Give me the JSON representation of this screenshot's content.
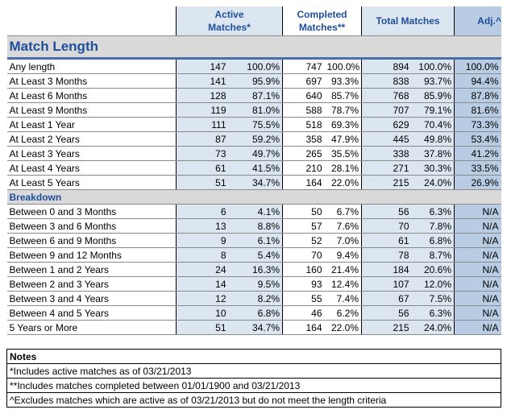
{
  "header": {
    "columns": [
      "Active Matches*",
      "Completed Matches**",
      "Total Matches",
      "Adj.^"
    ]
  },
  "sections": [
    {
      "title": "Match Length",
      "rows": [
        [
          "Any length",
          "147",
          "100.0%",
          "747",
          "100.0%",
          "894",
          "100.0%",
          "100.0%"
        ],
        [
          "At Least 3 Months",
          "141",
          "95.9%",
          "697",
          "93.3%",
          "838",
          "93.7%",
          "94.4%"
        ],
        [
          "At Least 6 Months",
          "128",
          "87.1%",
          "640",
          "85.7%",
          "768",
          "85.9%",
          "87.8%"
        ],
        [
          "At Least 9 Months",
          "119",
          "81.0%",
          "588",
          "78.7%",
          "707",
          "79.1%",
          "81.6%"
        ],
        [
          "At Least 1 Year",
          "111",
          "75.5%",
          "518",
          "69.3%",
          "629",
          "70.4%",
          "73.3%"
        ],
        [
          "At Least 2 Years",
          "87",
          "59.2%",
          "358",
          "47.9%",
          "445",
          "49.8%",
          "53.4%"
        ],
        [
          "At Least 3 Years",
          "73",
          "49.7%",
          "265",
          "35.5%",
          "338",
          "37.8%",
          "41.2%"
        ],
        [
          "At Least 4 Years",
          "61",
          "41.5%",
          "210",
          "28.1%",
          "271",
          "30.3%",
          "33.5%"
        ],
        [
          "At Least 5 Years",
          "51",
          "34.7%",
          "164",
          "22.0%",
          "215",
          "24.0%",
          "26.9%"
        ]
      ]
    },
    {
      "title": "Breakdown",
      "rows": [
        [
          "Between 0 and 3 Months",
          "6",
          "4.1%",
          "50",
          "6.7%",
          "56",
          "6.3%",
          "N/A"
        ],
        [
          "Between 3 and 6 Months",
          "13",
          "8.8%",
          "57",
          "7.6%",
          "70",
          "7.8%",
          "N/A"
        ],
        [
          "Between 6 and 9 Months",
          "9",
          "6.1%",
          "52",
          "7.0%",
          "61",
          "6.8%",
          "N/A"
        ],
        [
          "Between 9 and 12 Months",
          "8",
          "5.4%",
          "70",
          "9.4%",
          "78",
          "8.7%",
          "N/A"
        ],
        [
          "Between 1 and 2 Years",
          "24",
          "16.3%",
          "160",
          "21.4%",
          "184",
          "20.6%",
          "N/A"
        ],
        [
          "Between 2 and 3 Years",
          "14",
          "9.5%",
          "93",
          "12.4%",
          "107",
          "12.0%",
          "N/A"
        ],
        [
          "Between 3 and 4 Years",
          "12",
          "8.2%",
          "55",
          "7.4%",
          "67",
          "7.5%",
          "N/A"
        ],
        [
          "Between 4 and 5 Years",
          "10",
          "6.8%",
          "46",
          "6.2%",
          "56",
          "6.3%",
          "N/A"
        ],
        [
          "5 Years or More",
          "51",
          "34.7%",
          "164",
          "22.0%",
          "215",
          "24.0%",
          "N/A"
        ]
      ]
    }
  ],
  "notes": {
    "title": "Notes",
    "lines": [
      "*Includes active matches as of 03/21/2013",
      "**Includes matches completed between 01/01/1900 and 03/21/2013",
      "^Excludes matches which are active as of 03/21/2013 but do not meet the length criteria"
    ]
  }
}
